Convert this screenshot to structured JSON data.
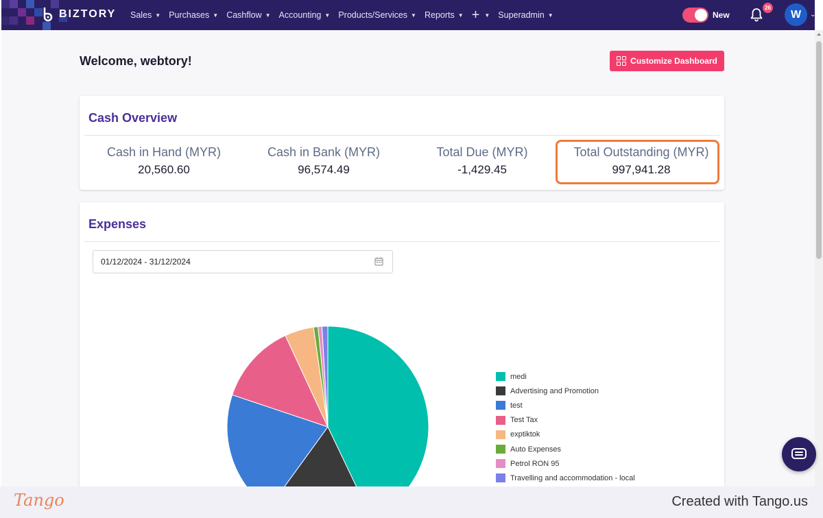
{
  "app": {
    "brand": "BIZTORY",
    "colors": {
      "nav_bg": "#2b1f63",
      "accent": "#f23d6c",
      "title_purple": "#4b2f9a",
      "highlight": "#f07a3a"
    }
  },
  "nav": {
    "items": [
      {
        "label": "Sales"
      },
      {
        "label": "Purchases"
      },
      {
        "label": "Cashflow"
      },
      {
        "label": "Accounting"
      },
      {
        "label": "Products/Services"
      },
      {
        "label": "Reports"
      },
      {
        "label": "+"
      },
      {
        "label": "Superadmin"
      }
    ],
    "toggle_label": "New",
    "notification_count": "26",
    "avatar_initial": "W"
  },
  "dashboard": {
    "welcome": "Welcome, webtory!",
    "customize_label": "Customize Dashboard"
  },
  "cash_overview": {
    "title": "Cash Overview",
    "stats": [
      {
        "label": "Cash in Hand (MYR)",
        "value": "20,560.60"
      },
      {
        "label": "Cash in Bank (MYR)",
        "value": "96,574.49"
      },
      {
        "label": "Total Due (MYR)",
        "value": "-1,429.45"
      },
      {
        "label": "Total Outstanding (MYR)",
        "value": "997,941.28"
      }
    ]
  },
  "expenses": {
    "title": "Expenses",
    "date_range": "01/12/2024 - 31/12/2024"
  },
  "chart_data": {
    "type": "pie",
    "categories": [
      "medi",
      "Advertising and Promotion",
      "test",
      "Test Tax",
      "exptiktok",
      "Auto Expenses",
      "Petrol RON 95",
      "Travelling and accommodation - local"
    ],
    "values": [
      41.5,
      16.5,
      19.5,
      12.5,
      4.5,
      0.7,
      0.6,
      0.9
    ],
    "colors": [
      "#00bfad",
      "#3a3a3a",
      "#3a7bd5",
      "#e8608a",
      "#f6b782",
      "#6aab3c",
      "#e48ec2",
      "#7c80e8"
    ],
    "legend_position": "right"
  },
  "footer": {
    "logo": "Tango",
    "credit": "Created with Tango.us"
  }
}
